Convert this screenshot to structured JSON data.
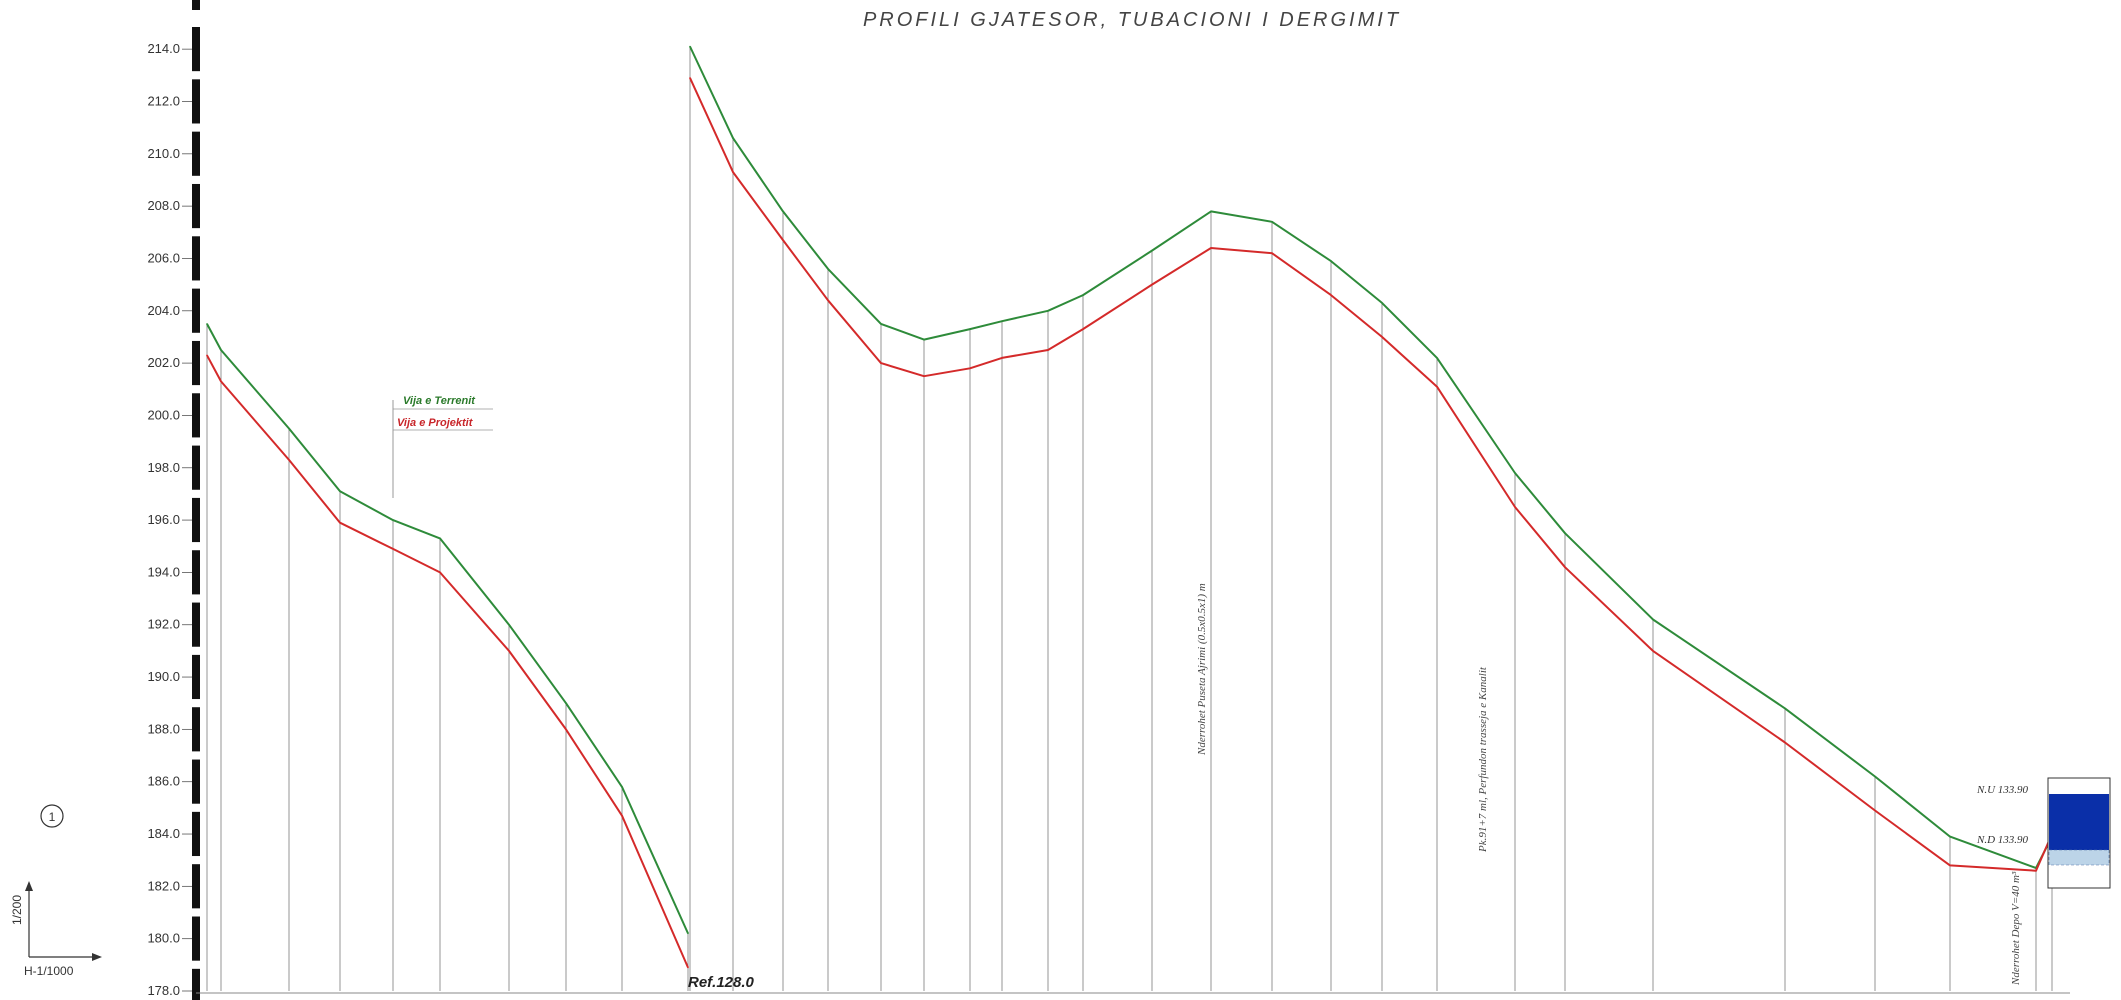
{
  "chart_data": {
    "type": "line",
    "title": "PROFILI GJATESOR, TUBACIONI I DERGIMIT",
    "ylim": [
      178,
      215
    ],
    "y_ticks": [
      178.0,
      180.0,
      182.0,
      184.0,
      186.0,
      188.0,
      190.0,
      192.0,
      194.0,
      196.0,
      198.0,
      200.0,
      202.0,
      204.0,
      206.0,
      208.0,
      210.0,
      212.0,
      214.0
    ],
    "grid": false,
    "legend_position": "center-left",
    "series": [
      {
        "name": "Vija e Terrenit",
        "color": "#2e8b3a",
        "segments": [
          [
            [
              0,
              203.5
            ],
            [
              1,
              202.5
            ],
            [
              2,
              199.5
            ],
            [
              3,
              197.1
            ],
            [
              4,
              196.0
            ],
            [
              5,
              195.3
            ],
            [
              6,
              192.0
            ],
            [
              7,
              189.0
            ],
            [
              8,
              185.8
            ],
            [
              9,
              180.2
            ]
          ],
          [
            [
              10,
              214.1
            ],
            [
              11,
              210.6
            ],
            [
              12,
              207.8
            ],
            [
              13,
              205.6
            ],
            [
              14,
              203.5
            ],
            [
              15,
              202.9
            ],
            [
              16,
              203.3
            ],
            [
              17,
              203.6
            ],
            [
              18,
              204.0
            ],
            [
              19,
              204.6
            ],
            [
              20,
              206.3
            ],
            [
              21,
              207.8
            ],
            [
              22,
              207.4
            ],
            [
              23,
              205.9
            ],
            [
              24,
              204.3
            ],
            [
              25,
              202.2
            ],
            [
              26,
              197.8
            ],
            [
              27,
              195.5
            ],
            [
              28,
              192.2
            ],
            [
              29,
              188.8
            ],
            [
              30,
              186.2
            ],
            [
              31,
              183.9
            ],
            [
              32,
              182.7
            ],
            [
              33,
              183.9
            ]
          ]
        ]
      },
      {
        "name": "Vija e Projektit",
        "color": "#d42a2a",
        "segments": [
          [
            [
              0,
              202.3
            ],
            [
              1,
              201.3
            ],
            [
              2,
              198.3
            ],
            [
              3,
              195.9
            ],
            [
              4,
              194.9
            ],
            [
              5,
              194.0
            ],
            [
              6,
              191.0
            ],
            [
              7,
              188.0
            ],
            [
              8,
              184.7
            ],
            [
              9,
              178.9
            ]
          ],
          [
            [
              10,
              212.9
            ],
            [
              11,
              209.3
            ],
            [
              12,
              206.7
            ],
            [
              13,
              204.4
            ],
            [
              14,
              202.0
            ],
            [
              15,
              201.5
            ],
            [
              16,
              201.8
            ],
            [
              17,
              202.2
            ],
            [
              18,
              202.5
            ],
            [
              19,
              203.3
            ],
            [
              20,
              205.0
            ],
            [
              21,
              206.4
            ],
            [
              22,
              206.2
            ],
            [
              23,
              204.6
            ],
            [
              24,
              203.0
            ],
            [
              25,
              201.1
            ],
            [
              26,
              196.5
            ],
            [
              27,
              194.2
            ],
            [
              28,
              191.0
            ],
            [
              29,
              187.5
            ],
            [
              30,
              184.9
            ],
            [
              31,
              182.8
            ],
            [
              32,
              182.6
            ],
            [
              33,
              184.0
            ]
          ]
        ]
      }
    ],
    "station_count": 34
  },
  "legend": {
    "terrain": "Vija e Terrenit",
    "project": "Vija e Projektit"
  },
  "notes": {
    "ref": "Ref.128.0",
    "crossing_canal_1": "Nderrohet Puseta Ajrimi (0.5x0.5x1) m",
    "crossing_canal_2": "Pk.91+7 ml, Perfundon trasseja e Kanalit",
    "reservoir_name": "Nderrohet Depo V=40 m³",
    "nu_label": "N.U 133.90",
    "nd_label": "N.D 133.90"
  },
  "scale": {
    "circle_number": "1",
    "vertical": "1/200",
    "horizontal": "H-1/1000"
  }
}
